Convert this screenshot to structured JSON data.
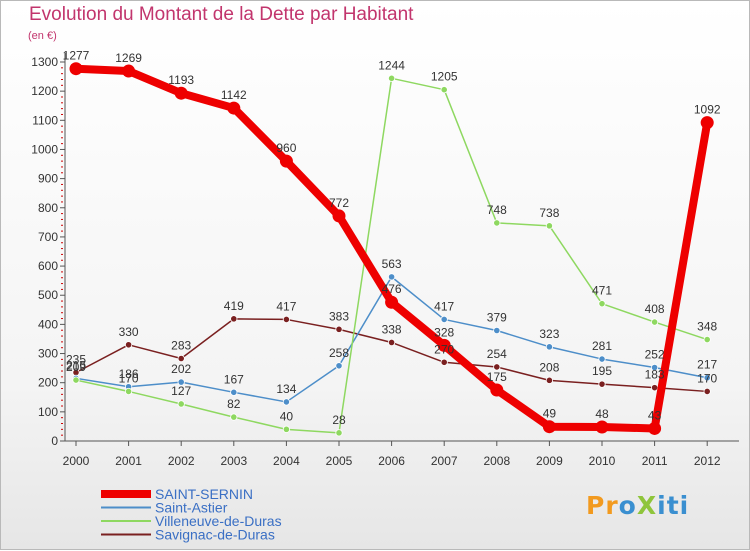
{
  "title": "Evolution du Montant de la Dette par Habitant",
  "unit": "(en €)",
  "logo": {
    "text": "ProXiti"
  },
  "chart_data": {
    "type": "line",
    "title": "Evolution du Montant de la Dette par Habitant",
    "ylabel": "(en €)",
    "categories": [
      "2000",
      "2001",
      "2002",
      "2003",
      "2004",
      "2005",
      "2006",
      "2007",
      "2008",
      "2009",
      "2010",
      "2011",
      "2012"
    ],
    "ylim": [
      0,
      1300
    ],
    "yticks": [
      0,
      100,
      200,
      300,
      400,
      500,
      600,
      700,
      800,
      900,
      1000,
      1100,
      1200,
      1300
    ],
    "grid": false,
    "legend": "bottom-left",
    "series": [
      {
        "name": "SAINT-SERNIN",
        "color": "#ee0000",
        "width": 8,
        "values": [
          1277,
          1269,
          1193,
          1142,
          960,
          772,
          476,
          328,
          175,
          49,
          48,
          43,
          1092
        ]
      },
      {
        "name": "Saint-Astier",
        "color": "#4d8ec9",
        "width": 1.5,
        "values": [
          215,
          186,
          202,
          167,
          134,
          258,
          563,
          417,
          379,
          323,
          281,
          252,
          217
        ]
      },
      {
        "name": "Villeneuve-de-Duras",
        "color": "#8ed860",
        "width": 1.5,
        "values": [
          209,
          170,
          127,
          82,
          40,
          28,
          1244,
          1205,
          748,
          738,
          471,
          408,
          348
        ]
      },
      {
        "name": "Savignac-de-Duras",
        "color": "#7a2020",
        "width": 1.5,
        "values": [
          235,
          330,
          283,
          419,
          417,
          383,
          338,
          270,
          254,
          208,
          195,
          183,
          170
        ]
      }
    ]
  }
}
